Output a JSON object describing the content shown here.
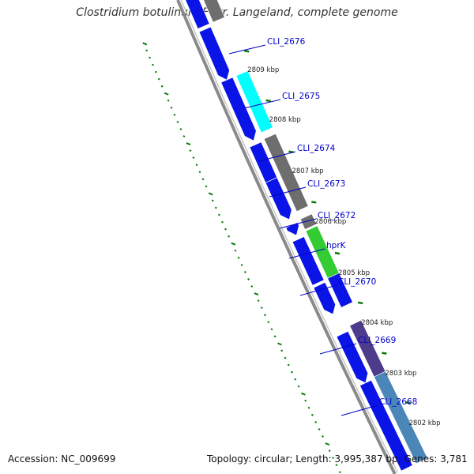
{
  "title": "Clostridium botulinum F str. Langeland, complete genome",
  "footer": {
    "accession": "Accession: NC_009699",
    "summary": "Topology: circular; Length: 3,995,387 bp; Genes: 3,781"
  },
  "genes": [
    {
      "label": "CLI_2676"
    },
    {
      "label": "CLI_2675"
    },
    {
      "label": "CLI_2674"
    },
    {
      "label": "CLI_2673"
    },
    {
      "label": "CLI_2672"
    },
    {
      "label": "hprK"
    },
    {
      "label": "CLI_2670"
    },
    {
      "label": "CLI_2669"
    },
    {
      "label": "CLI_2668"
    }
  ],
  "scale_labels": [
    {
      "label": "2809 kbp"
    },
    {
      "label": "2808 kbp"
    },
    {
      "label": "2807 kbp"
    },
    {
      "label": "2806 kbp"
    },
    {
      "label": "2805 kbp"
    },
    {
      "label": "2804 kbp"
    },
    {
      "label": "2803 kbp"
    },
    {
      "label": "2802 kbp"
    }
  ],
  "colors": {
    "cds_blue": "#0a14e6",
    "cyan": "#00ffff",
    "gray": "#6e6e6e",
    "green": "#33cc33",
    "purple": "#4d3b8c",
    "steelblue": "#4a86b8",
    "backbone": "#8a8a8a",
    "tick_green": "#0a7a0a",
    "label_blue": "#0000cc"
  }
}
